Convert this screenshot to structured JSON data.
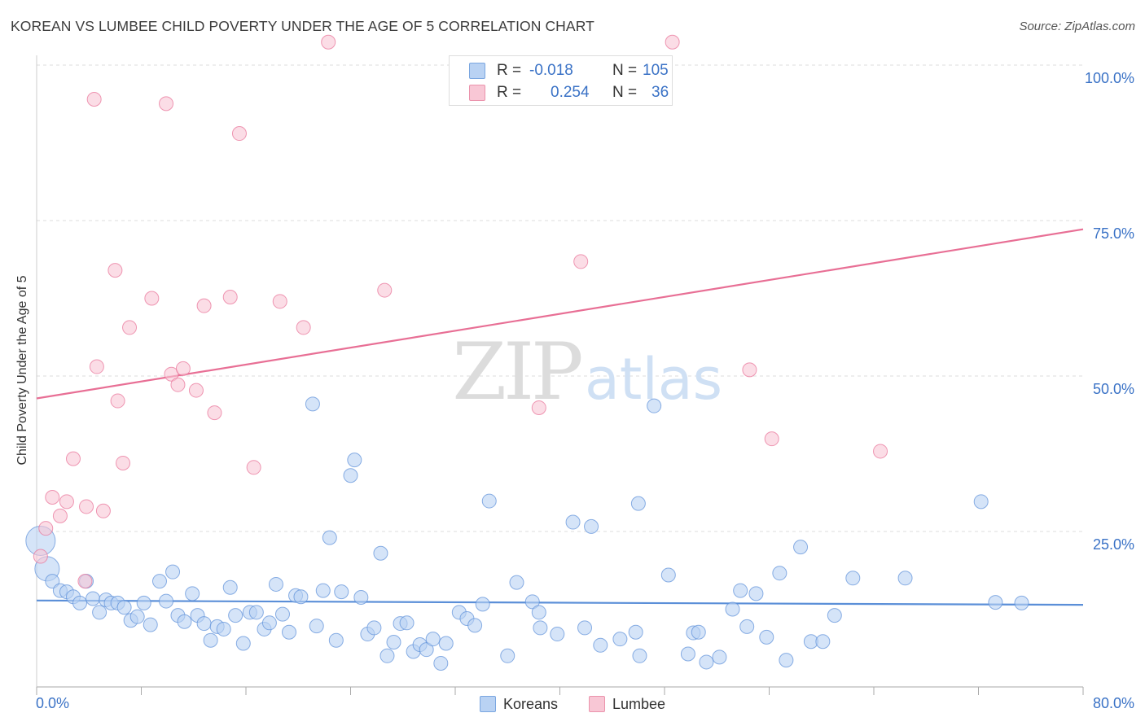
{
  "title": "KOREAN VS LUMBEE CHILD POVERTY UNDER THE AGE OF 5 CORRELATION CHART",
  "source": "Source: ZipAtlas.com",
  "watermark": {
    "zip": "ZIP",
    "atlas": "atlas"
  },
  "legend_stats": [
    {
      "r_label": "R =",
      "r_value": "-0.018",
      "n_label": "N =",
      "n_value": "105",
      "color": "#5b8fd8"
    },
    {
      "r_label": "R =",
      "r_value": "0.254",
      "n_label": "N =",
      "n_value": "36",
      "color": "#e86f95"
    }
  ],
  "chart_data": {
    "type": "scatter",
    "title": "KOREAN VS LUMBEE CHILD POVERTY UNDER THE AGE OF 5 CORRELATION CHART",
    "xlabel": "",
    "ylabel": "Child Poverty Under the Age of 5",
    "xlim": [
      0,
      80
    ],
    "ylim": [
      0,
      105
    ],
    "x_tick_labels": [
      "0.0%",
      "80.0%"
    ],
    "y_tick_labels": [
      "25.0%",
      "50.0%",
      "75.0%",
      "100.0%"
    ],
    "y_ticks": [
      25,
      50,
      75,
      100
    ],
    "grid": true,
    "legend_position": "bottom-center",
    "series": [
      {
        "name": "Koreans",
        "color": "#5b8fd8",
        "fill": "#b9d2f3",
        "trend": {
          "x": [
            0,
            80
          ],
          "y": [
            13.9,
            13.2
          ]
        },
        "points": [
          [
            0.3,
            23.5
          ],
          [
            0.8,
            19.0
          ],
          [
            1.2,
            17.0
          ],
          [
            1.8,
            15.5
          ],
          [
            2.3,
            15.3
          ],
          [
            2.8,
            14.5
          ],
          [
            3.3,
            13.5
          ],
          [
            3.8,
            17.0
          ],
          [
            4.3,
            14.2
          ],
          [
            4.8,
            12.0
          ],
          [
            5.3,
            14.0
          ],
          [
            5.7,
            13.5
          ],
          [
            6.2,
            13.5
          ],
          [
            6.7,
            12.8
          ],
          [
            7.2,
            10.7
          ],
          [
            7.7,
            11.3
          ],
          [
            8.2,
            13.5
          ],
          [
            8.7,
            10.0
          ],
          [
            9.4,
            17.0
          ],
          [
            9.9,
            13.8
          ],
          [
            10.4,
            18.5
          ],
          [
            10.8,
            11.5
          ],
          [
            11.3,
            10.5
          ],
          [
            11.9,
            15.0
          ],
          [
            12.3,
            11.5
          ],
          [
            12.8,
            10.2
          ],
          [
            13.3,
            7.5
          ],
          [
            13.8,
            9.7
          ],
          [
            14.3,
            9.3
          ],
          [
            14.8,
            16.0
          ],
          [
            15.2,
            11.5
          ],
          [
            15.8,
            7.0
          ],
          [
            16.3,
            12.0
          ],
          [
            16.8,
            12.0
          ],
          [
            17.4,
            9.3
          ],
          [
            17.8,
            10.3
          ],
          [
            18.3,
            16.5
          ],
          [
            18.8,
            11.7
          ],
          [
            19.3,
            8.8
          ],
          [
            19.8,
            14.7
          ],
          [
            20.2,
            14.5
          ],
          [
            21.1,
            45.5
          ],
          [
            21.4,
            9.8
          ],
          [
            21.9,
            15.5
          ],
          [
            22.4,
            24.0
          ],
          [
            22.9,
            7.5
          ],
          [
            23.3,
            15.3
          ],
          [
            24.0,
            34.0
          ],
          [
            24.3,
            36.5
          ],
          [
            24.8,
            14.4
          ],
          [
            25.3,
            8.5
          ],
          [
            25.8,
            9.5
          ],
          [
            26.3,
            21.5
          ],
          [
            26.8,
            5.0
          ],
          [
            27.3,
            7.2
          ],
          [
            27.8,
            10.2
          ],
          [
            28.3,
            10.3
          ],
          [
            28.8,
            5.7
          ],
          [
            29.3,
            6.8
          ],
          [
            29.8,
            6.0
          ],
          [
            30.3,
            7.7
          ],
          [
            30.9,
            3.8
          ],
          [
            31.3,
            7.0
          ],
          [
            32.3,
            12.0
          ],
          [
            32.9,
            11.0
          ],
          [
            33.5,
            9.9
          ],
          [
            34.1,
            13.3
          ],
          [
            34.6,
            29.9
          ],
          [
            36.0,
            5.0
          ],
          [
            36.7,
            16.8
          ],
          [
            37.9,
            13.7
          ],
          [
            38.4,
            12.0
          ],
          [
            38.5,
            9.5
          ],
          [
            39.8,
            8.5
          ],
          [
            41.0,
            26.5
          ],
          [
            41.9,
            9.5
          ],
          [
            42.4,
            25.8
          ],
          [
            43.1,
            6.7
          ],
          [
            44.6,
            7.7
          ],
          [
            45.8,
            8.8
          ],
          [
            46.0,
            29.5
          ],
          [
            46.1,
            5.0
          ],
          [
            47.2,
            45.2
          ],
          [
            48.3,
            18.0
          ],
          [
            49.8,
            5.3
          ],
          [
            50.2,
            8.7
          ],
          [
            50.6,
            8.8
          ],
          [
            51.2,
            4.0
          ],
          [
            52.2,
            4.8
          ],
          [
            53.2,
            12.5
          ],
          [
            53.8,
            15.5
          ],
          [
            54.3,
            9.7
          ],
          [
            55.0,
            15.0
          ],
          [
            55.8,
            8.0
          ],
          [
            56.8,
            18.3
          ],
          [
            57.3,
            4.3
          ],
          [
            58.4,
            22.5
          ],
          [
            59.2,
            7.3
          ],
          [
            60.1,
            7.3
          ],
          [
            61.0,
            11.5
          ],
          [
            62.4,
            17.5
          ],
          [
            66.4,
            17.5
          ],
          [
            72.2,
            29.8
          ],
          [
            73.3,
            13.6
          ],
          [
            75.3,
            13.5
          ]
        ]
      },
      {
        "name": "Lumbee",
        "color": "#e86f95",
        "fill": "#f8c7d5",
        "trend": {
          "x": [
            0,
            80
          ],
          "y": [
            46.4,
            73.6
          ]
        },
        "points": [
          [
            0.3,
            21.0
          ],
          [
            0.7,
            25.5
          ],
          [
            1.2,
            30.5
          ],
          [
            1.8,
            27.5
          ],
          [
            2.3,
            29.8
          ],
          [
            2.8,
            36.7
          ],
          [
            3.7,
            17.0
          ],
          [
            3.8,
            29.0
          ],
          [
            4.4,
            94.5
          ],
          [
            4.6,
            51.5
          ],
          [
            5.1,
            28.3
          ],
          [
            6.0,
            67.0
          ],
          [
            6.2,
            46.0
          ],
          [
            6.6,
            36.0
          ],
          [
            7.1,
            57.8
          ],
          [
            8.8,
            62.5
          ],
          [
            9.9,
            93.8
          ],
          [
            10.3,
            50.3
          ],
          [
            10.8,
            48.6
          ],
          [
            11.2,
            51.2
          ],
          [
            12.2,
            47.7
          ],
          [
            12.8,
            61.3
          ],
          [
            13.6,
            44.1
          ],
          [
            14.8,
            62.7
          ],
          [
            15.5,
            89.0
          ],
          [
            16.6,
            35.3
          ],
          [
            18.6,
            62.0
          ],
          [
            20.4,
            57.8
          ],
          [
            22.3,
            103.7
          ],
          [
            26.6,
            63.8
          ],
          [
            38.4,
            44.9
          ],
          [
            41.6,
            68.4
          ],
          [
            48.6,
            103.7
          ],
          [
            54.5,
            51.0
          ],
          [
            56.2,
            39.9
          ],
          [
            64.5,
            37.9
          ]
        ]
      }
    ]
  }
}
